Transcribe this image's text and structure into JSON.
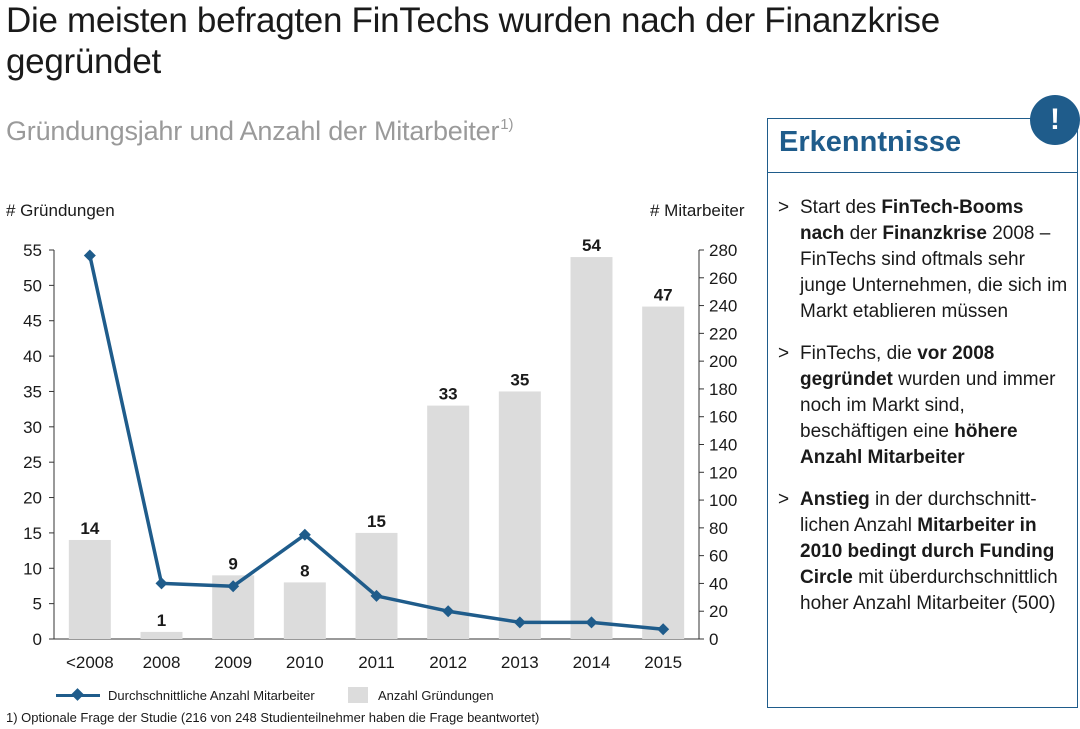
{
  "header": {
    "title": "Die meisten befragten FinTechs wurden nach der Finanzkrise gegründet",
    "subtitle": "Gründungsjahr und Anzahl der Mitarbeiter",
    "subtitle_footnote_mark": "1)"
  },
  "chart_data": {
    "type": "bar",
    "categories": [
      "<2008",
      "2008",
      "2009",
      "2010",
      "2011",
      "2012",
      "2013",
      "2014",
      "2015"
    ],
    "ylabel_left": "# Gründungen",
    "ylabel_right": "# Mitarbeiter",
    "ylim_left": [
      0,
      55
    ],
    "ylim_right": [
      0,
      280
    ],
    "yticks_left": [
      0,
      5,
      10,
      15,
      20,
      25,
      30,
      35,
      40,
      45,
      50,
      55
    ],
    "yticks_right": [
      0,
      20,
      40,
      60,
      80,
      100,
      120,
      140,
      160,
      180,
      200,
      220,
      240,
      260,
      280
    ],
    "grid": false,
    "legend_position": "bottom-left",
    "series": [
      {
        "name": "Anzahl Gründungen",
        "type": "bar",
        "axis": "left",
        "color": "#dcdcdc",
        "values": [
          14,
          1,
          9,
          8,
          15,
          33,
          35,
          54,
          47
        ],
        "data_labels": true
      },
      {
        "name": "Durchschnittliche Anzahl Mitarbeiter",
        "type": "line",
        "axis": "right",
        "color": "#1f5c8b",
        "marker": "diamond",
        "values": [
          276,
          40,
          38,
          75,
          31,
          20,
          12,
          12,
          7
        ]
      }
    ]
  },
  "footnote": "1) Optionale Frage der Studie (216 von 248 Studienteilnehmer haben die Frage beantwortet)",
  "panel": {
    "badge": "!",
    "title": "Erkenntnisse",
    "bullet_marker": ">",
    "bullets": [
      [
        {
          "t": "Start des ",
          "b": false
        },
        {
          "t": "FinTech-Booms nach",
          "b": true
        },
        {
          "t": " der ",
          "b": false
        },
        {
          "t": "Finanzkrise",
          "b": true
        },
        {
          "t": " 2008 – FinTechs sind oftmals sehr junge Unternehmen, die sich im Markt etablieren müssen",
          "b": false
        }
      ],
      [
        {
          "t": "FinTechs, die ",
          "b": false
        },
        {
          "t": "vor 2008 gegründet",
          "b": true
        },
        {
          "t": " wurden und immer noch im Markt sind, beschäftigen eine ",
          "b": false
        },
        {
          "t": "höhere Anzahl Mitarbeiter",
          "b": true
        }
      ],
      [
        {
          "t": "Anstieg",
          "b": true
        },
        {
          "t": " in der durchschnitt-lichen Anzahl ",
          "b": false
        },
        {
          "t": "Mitarbeiter in 2010 bedingt durch Funding Circle",
          "b": true
        },
        {
          "t": " mit überdurchschnittlich hoher Anzahl Mitarbeiter (500)",
          "b": false
        }
      ]
    ]
  }
}
